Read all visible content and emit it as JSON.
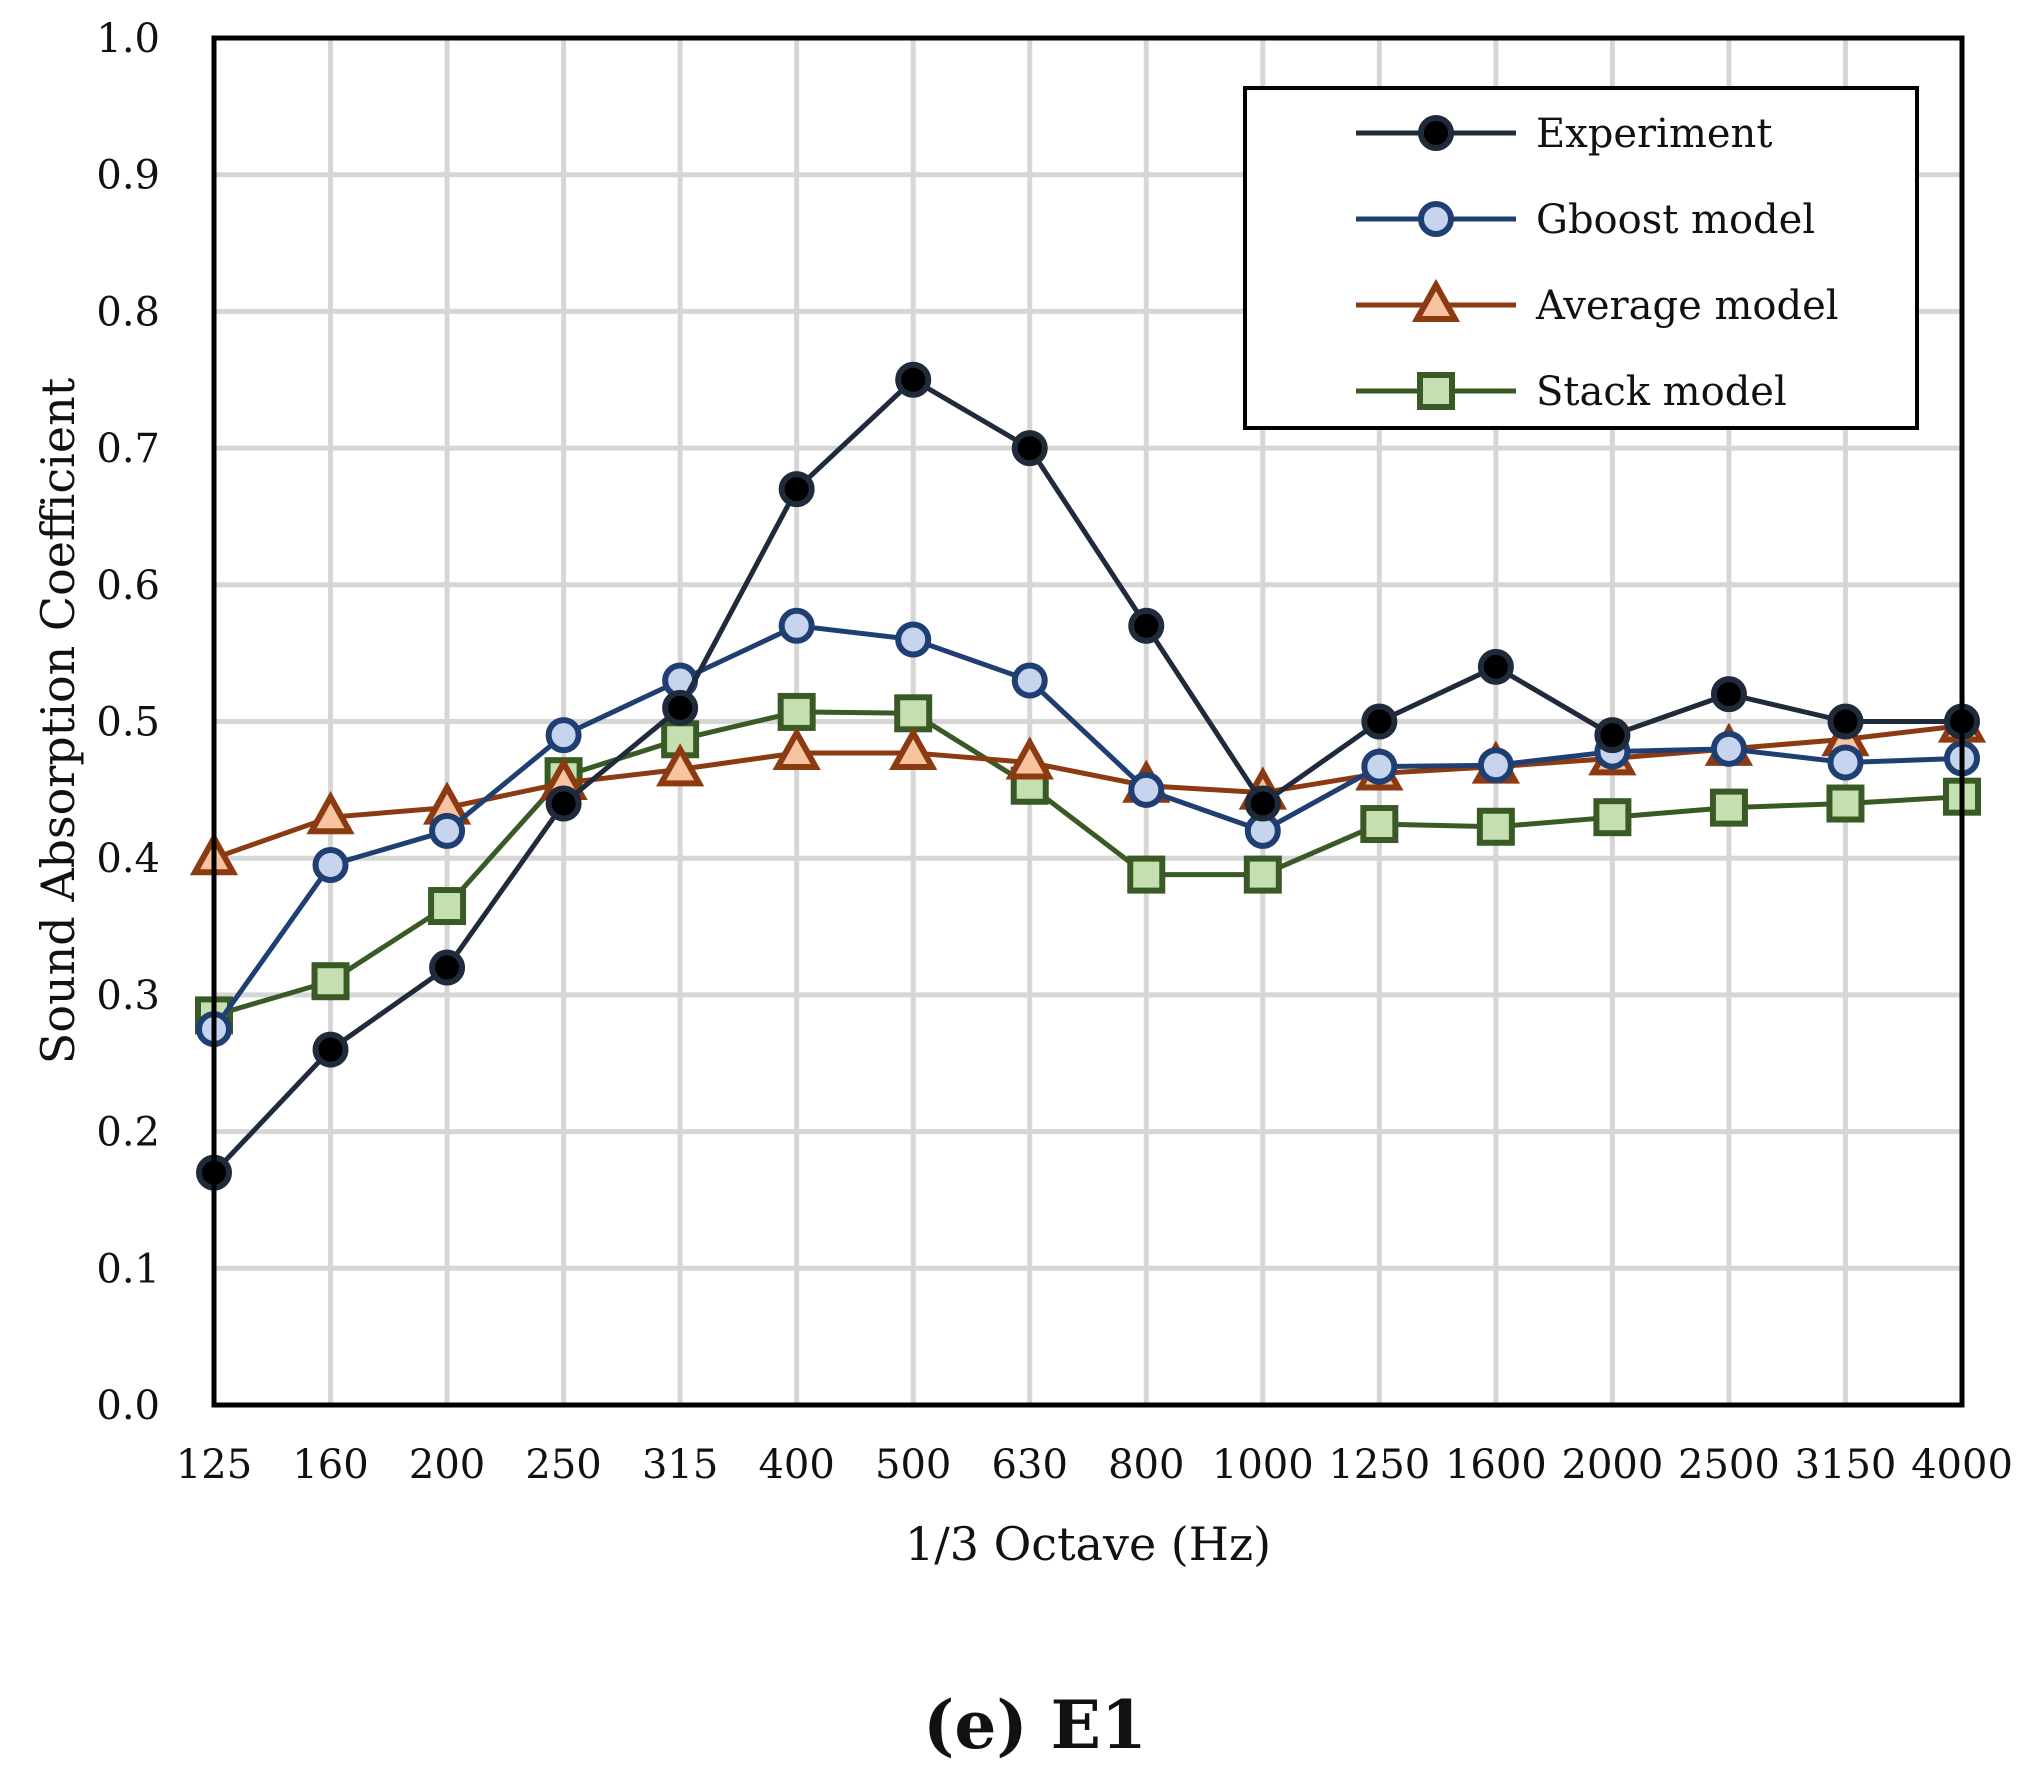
{
  "chart_data": {
    "type": "line",
    "caption": "(e) E1",
    "xlabel": "1/3 Octave (Hz)",
    "ylabel": "Sound Absorption Coefficient",
    "categories": [
      "125",
      "160",
      "200",
      "250",
      "315",
      "400",
      "500",
      "630",
      "800",
      "1000",
      "1250",
      "1600",
      "2000",
      "2500",
      "3150",
      "4000"
    ],
    "ylim": [
      0,
      1
    ],
    "yticks": [
      "0.0",
      "0.1",
      "0.2",
      "0.3",
      "0.4",
      "0.5",
      "0.6",
      "0.7",
      "0.8",
      "0.9",
      "1.0"
    ],
    "grid": true,
    "legend_position": "top-right",
    "series": [
      {
        "name": "Experiment",
        "marker": "circle",
        "line_color": "#1f2a3a",
        "marker_fill": "#000000",
        "marker_stroke": "#1f2a3a",
        "values": [
          0.17,
          0.26,
          0.32,
          0.44,
          0.51,
          0.67,
          0.75,
          0.7,
          0.57,
          0.44,
          0.5,
          0.54,
          0.49,
          0.52,
          0.5,
          0.5
        ]
      },
      {
        "name": "Gboost model",
        "marker": "circle",
        "line_color": "#1f3f73",
        "marker_fill": "#c7d4ee",
        "marker_stroke": "#1f3f73",
        "values": [
          0.275,
          0.395,
          0.42,
          0.49,
          0.53,
          0.57,
          0.56,
          0.53,
          0.45,
          0.42,
          0.467,
          0.468,
          0.478,
          0.48,
          0.47,
          0.473
        ]
      },
      {
        "name": "Average model",
        "marker": "triangle",
        "line_color": "#8b3a12",
        "marker_fill": "#f8c4a0",
        "marker_stroke": "#8b3a12",
        "values": [
          0.4,
          0.43,
          0.437,
          0.455,
          0.465,
          0.477,
          0.477,
          0.47,
          0.453,
          0.448,
          0.462,
          0.467,
          0.473,
          0.48,
          0.487,
          0.497
        ]
      },
      {
        "name": "Stack model",
        "marker": "square",
        "line_color": "#3a5a25",
        "marker_fill": "#c6dfb0",
        "marker_stroke": "#3a5a25",
        "values": [
          0.285,
          0.31,
          0.365,
          0.46,
          0.487,
          0.507,
          0.506,
          0.453,
          0.388,
          0.388,
          0.425,
          0.423,
          0.43,
          0.437,
          0.44,
          0.445
        ]
      }
    ]
  }
}
